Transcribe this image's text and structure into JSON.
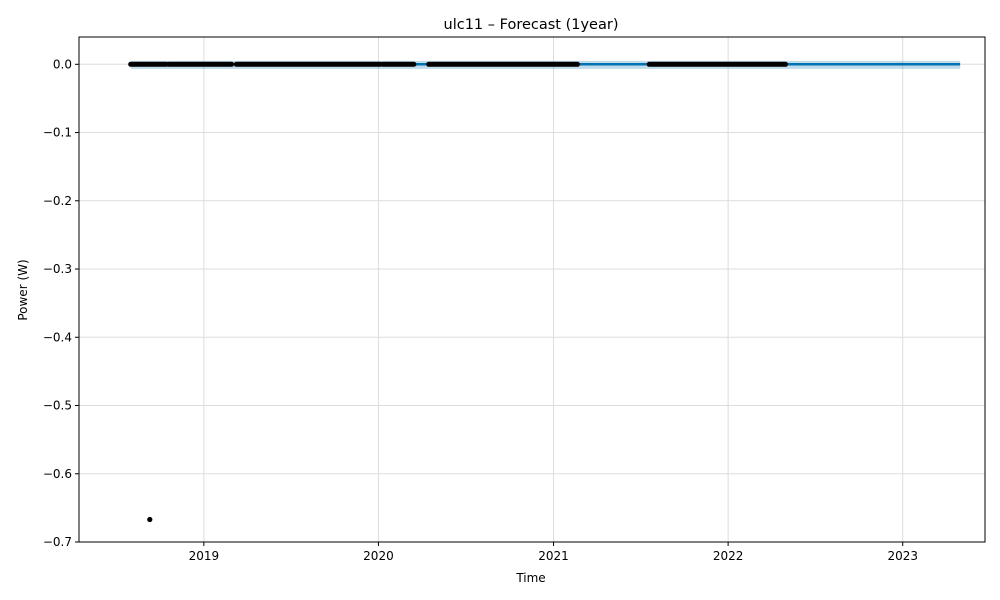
{
  "chart_data": {
    "type": "line",
    "title": "ulc11 – Forecast (1year)",
    "xlabel": "Time",
    "ylabel": "Power (W)",
    "xlim": [
      "2018-04-15",
      "2023-06-22"
    ],
    "ylim": [
      -0.7,
      0.04
    ],
    "x_ticks": [
      "2019",
      "2020",
      "2021",
      "2022",
      "2023"
    ],
    "y_ticks": [
      "0.0",
      "−0.1",
      "−0.2",
      "−0.3",
      "−0.4",
      "−0.5",
      "−0.6",
      "−0.7"
    ],
    "grid": true,
    "series": [
      {
        "kind": "observed_points",
        "color": "#000000",
        "segments": [
          {
            "start": "2018-08-01",
            "end": "2018-10-15",
            "y": 0.0
          },
          {
            "start": "2018-10-20",
            "end": "2019-02-28",
            "y": 0.0
          },
          {
            "start": "2019-03-10",
            "end": "2020-01-05",
            "y": 0.0
          },
          {
            "start": "2020-01-10",
            "end": "2020-03-15",
            "y": 0.0
          },
          {
            "start": "2020-04-15",
            "end": "2021-02-20",
            "y": 0.0
          },
          {
            "start": "2021-07-20",
            "end": "2022-05-01",
            "y": 0.0
          }
        ],
        "outliers": [
          {
            "x": "2018-09-10",
            "y": -0.667
          }
        ]
      },
      {
        "kind": "forecast_line",
        "color": "#0072B2",
        "x_start": "2018-08-01",
        "x_end": "2023-05-01",
        "y": 0.0
      },
      {
        "kind": "uncertainty_band",
        "color": "#0072B2",
        "x_start": "2018-08-01",
        "x_end": "2023-05-01",
        "upper": 0.005,
        "lower": -0.005
      }
    ]
  }
}
